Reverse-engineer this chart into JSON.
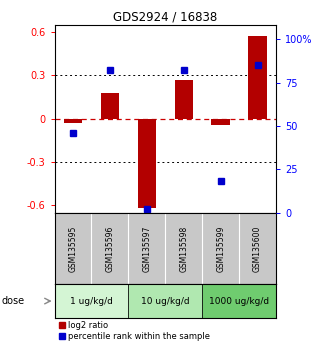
{
  "title": "GDS2924 / 16838",
  "samples": [
    "GSM135595",
    "GSM135596",
    "GSM135597",
    "GSM135598",
    "GSM135599",
    "GSM135600"
  ],
  "log2_ratio": [
    -0.03,
    0.18,
    -0.62,
    0.27,
    -0.04,
    0.57
  ],
  "percentile": [
    46,
    82,
    2,
    82,
    18,
    85
  ],
  "doses": [
    {
      "label": "1 ug/kg/d",
      "samples": [
        0,
        1
      ],
      "color": "#d4f5d4"
    },
    {
      "label": "10 ug/kg/d",
      "samples": [
        2,
        3
      ],
      "color": "#b0e8b0"
    },
    {
      "label": "1000 ug/kg/d",
      "samples": [
        4,
        5
      ],
      "color": "#6fcc6f"
    }
  ],
  "bar_color": "#b30000",
  "dot_color": "#0000cc",
  "ylim_left": [
    -0.65,
    0.65
  ],
  "ylim_right": [
    0,
    108.3
  ],
  "yticks_left": [
    -0.6,
    -0.3,
    0.0,
    0.3,
    0.6
  ],
  "yticks_right": [
    0,
    25,
    50,
    75,
    100
  ],
  "ytick_labels_right": [
    "0",
    "25",
    "50",
    "75",
    "100%"
  ],
  "ytick_labels_left": [
    "-0.6",
    "-0.3",
    "0",
    "0.3",
    "0.6"
  ],
  "hlines": [
    0.3,
    -0.3
  ],
  "zero_line_color": "#cc0000",
  "background_color": "#ffffff",
  "plot_bg": "#ffffff",
  "legend_red_label": "log2 ratio",
  "legend_blue_label": "percentile rank within the sample",
  "dose_label": "dose",
  "bar_width": 0.5,
  "sample_bg_color": "#c8c8c8"
}
